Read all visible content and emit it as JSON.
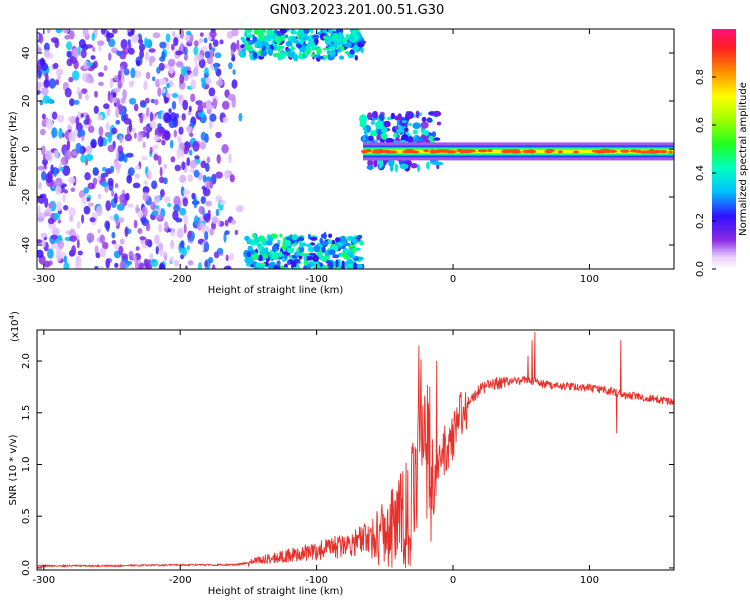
{
  "title": "GN03.2023.201.00.51.G30",
  "chart_data": [
    {
      "type": "heatmap",
      "xlabel": "Height of straight line (km)",
      "ylabel": "Frequency (Hz)",
      "xlim": [
        -305,
        162
      ],
      "ylim": [
        -50,
        50
      ],
      "xticks": [
        -300,
        -200,
        -100,
        0,
        100
      ],
      "yticks": [
        -40,
        -20,
        0,
        20,
        40
      ],
      "colorbar": {
        "label": "Normalized spectral amplitude",
        "range": [
          0,
          1
        ],
        "ticks": [
          "0.0",
          "0.2",
          "0.4",
          "0.6",
          "0.8"
        ],
        "tick_values": [
          0,
          0.2,
          0.4,
          0.6,
          0.8
        ]
      },
      "features": [
        {
          "region": "noise",
          "x": [
            -305,
            -155
          ],
          "y": [
            -50,
            50
          ],
          "amplitude": [
            0.05,
            0.35
          ]
        },
        {
          "region": "upper-burst",
          "x": [
            -155,
            -66
          ],
          "y": [
            38,
            50
          ],
          "amplitude": [
            0.2,
            0.5
          ]
        },
        {
          "region": "lower-burst",
          "x": [
            -152,
            -66
          ],
          "y": [
            -50,
            -36
          ],
          "amplitude": [
            0.2,
            0.5
          ]
        },
        {
          "region": "signal-line",
          "x": [
            -66,
            162
          ],
          "y": [
            -3,
            1
          ],
          "amplitude": [
            0.4,
            0.9
          ]
        },
        {
          "region": "blob",
          "x": [
            -66,
            -10
          ],
          "y": [
            -8,
            15
          ],
          "amplitude": [
            0.1,
            0.45
          ]
        }
      ]
    },
    {
      "type": "line",
      "xlabel": "Height of straight line (km)",
      "ylabel": "SNR (10 * v/v)",
      "yscale_label": "(x10",
      "yscale_exp": "4",
      "yscale_close": ")",
      "xlim": [
        -305,
        162
      ],
      "ylim": [
        -0.02,
        2.3
      ],
      "xticks": [
        -300,
        -200,
        -100,
        0,
        100
      ],
      "yticks": [
        0.0,
        0.5,
        1.0,
        1.5,
        2.0
      ],
      "ytick_labels": [
        "0.0",
        "0.5",
        "1.0",
        "1.5",
        "2.0"
      ],
      "color": "#e8302a",
      "series": [
        {
          "x": [
            -305,
            -250,
            -200,
            -160,
            -150,
            -140,
            -120,
            -100,
            -85,
            -70,
            -60,
            -50,
            -42,
            -35,
            -30,
            -27,
            -25,
            -22,
            -20,
            -18,
            -15,
            -12,
            -10,
            -8,
            -5,
            0,
            5,
            10,
            15,
            20,
            25,
            30,
            40,
            50,
            55,
            60,
            65,
            70,
            80,
            90,
            100,
            110,
            118,
            122,
            125,
            130,
            140,
            150,
            162
          ],
          "y": [
            0.02,
            0.02,
            0.03,
            0.03,
            0.05,
            0.08,
            0.12,
            0.16,
            0.2,
            0.26,
            0.3,
            0.35,
            0.4,
            0.5,
            0.6,
            0.8,
            1.2,
            1.6,
            1.4,
            0.9,
            0.7,
            0.9,
            1.0,
            1.1,
            1.15,
            1.3,
            1.45,
            1.58,
            1.66,
            1.72,
            1.76,
            1.78,
            1.8,
            1.81,
            1.82,
            1.8,
            1.78,
            1.77,
            1.76,
            1.75,
            1.74,
            1.72,
            1.71,
            1.68,
            1.67,
            1.66,
            1.65,
            1.63,
            1.6
          ]
        }
      ],
      "spikes": [
        {
          "x": -25,
          "y": 2.15
        },
        {
          "x": -17,
          "y": 1.75
        },
        {
          "x": -12,
          "y": 2.0
        },
        {
          "x": 55,
          "y": 2.05
        },
        {
          "x": 58,
          "y": 2.2
        },
        {
          "x": 60,
          "y": 2.28
        },
        {
          "x": 123,
          "y": 2.2
        },
        {
          "x": 120,
          "y": 1.3
        }
      ]
    }
  ]
}
